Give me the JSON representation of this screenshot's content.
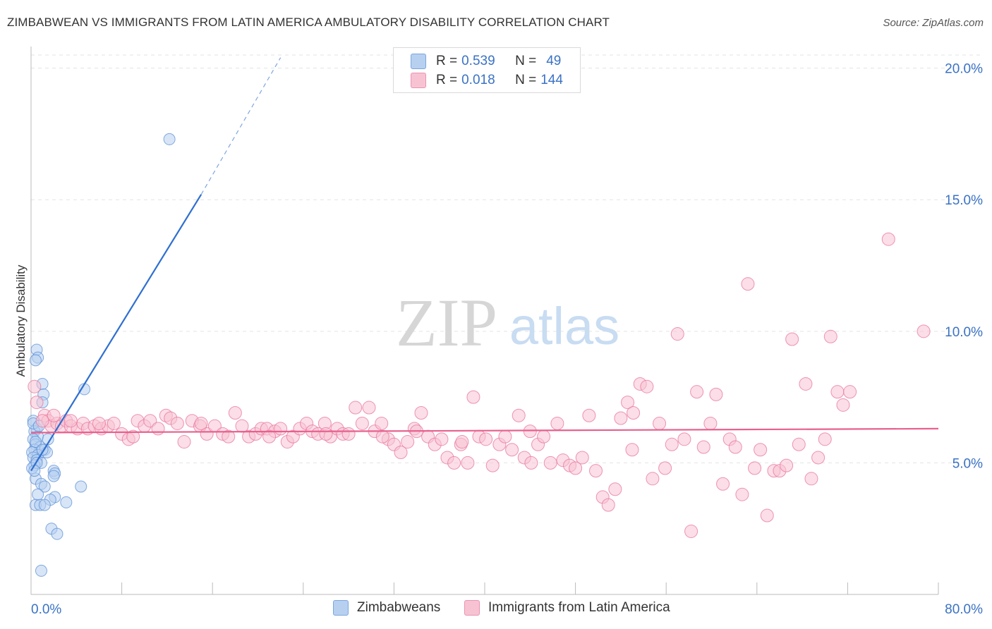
{
  "chart_data": {
    "type": "scatter",
    "title": "ZIMBABWEAN VS IMMIGRANTS FROM LATIN AMERICA AMBULATORY DISABILITY CORRELATION CHART",
    "source": "Source: ZipAtlas.com",
    "ylabel": "Ambulatory Disability",
    "xlabel": "",
    "xlim": [
      0,
      80
    ],
    "ylim": [
      0,
      20.5
    ],
    "x_tick_labels": [
      "0.0%",
      "80.0%"
    ],
    "y_ticks": [
      {
        "value": 5,
        "label": "5.0%"
      },
      {
        "value": 10,
        "label": "10.0%"
      },
      {
        "value": 15,
        "label": "15.0%"
      },
      {
        "value": 20,
        "label": "20.0%"
      }
    ],
    "watermark": {
      "zip": "ZIP",
      "atlas": "atlas"
    },
    "legend": [
      {
        "r_label": "R =",
        "r": "0.539",
        "n_label": "N =",
        "n": "49"
      },
      {
        "r_label": "R =",
        "r": "0.018",
        "n_label": "N =",
        "n": "144"
      }
    ],
    "series": [
      {
        "name": "Zimbabweans",
        "color": "#5b8fd6",
        "fill": "#b7d0f0",
        "trend": {
          "x0": 0,
          "y0": 4.7,
          "x1": 15,
          "y1": 15.2,
          "dash_to_x": 22,
          "dash_to_y": 20.4
        },
        "points": [
          [
            12.2,
            17.3
          ],
          [
            0.5,
            9.3
          ],
          [
            0.6,
            9.0
          ],
          [
            0.4,
            8.9
          ],
          [
            1.0,
            8.0
          ],
          [
            1.1,
            7.6
          ],
          [
            4.7,
            7.8
          ],
          [
            1.0,
            7.3
          ],
          [
            0.2,
            6.6
          ],
          [
            0.5,
            6.3
          ],
          [
            0.3,
            6.2
          ],
          [
            0.6,
            6.0
          ],
          [
            0.2,
            5.9
          ],
          [
            1.5,
            5.9
          ],
          [
            0.4,
            5.7
          ],
          [
            0.8,
            5.6
          ],
          [
            1.2,
            5.5
          ],
          [
            0.3,
            5.5
          ],
          [
            0.1,
            5.4
          ],
          [
            0.6,
            5.3
          ],
          [
            1.4,
            5.4
          ],
          [
            0.2,
            5.2
          ],
          [
            0.5,
            5.1
          ],
          [
            0.9,
            5.0
          ],
          [
            0.3,
            4.9
          ],
          [
            0.1,
            4.8
          ],
          [
            2.0,
            4.7
          ],
          [
            2.1,
            4.6
          ],
          [
            2.0,
            4.5
          ],
          [
            0.4,
            4.4
          ],
          [
            0.9,
            4.2
          ],
          [
            1.2,
            4.1
          ],
          [
            4.4,
            4.1
          ],
          [
            0.6,
            3.8
          ],
          [
            2.1,
            3.7
          ],
          [
            1.7,
            3.6
          ],
          [
            3.1,
            3.5
          ],
          [
            0.4,
            3.4
          ],
          [
            0.8,
            3.4
          ],
          [
            1.2,
            3.4
          ],
          [
            1.8,
            2.5
          ],
          [
            2.3,
            2.3
          ],
          [
            0.9,
            0.9
          ],
          [
            0.2,
            6.5
          ],
          [
            0.7,
            6.4
          ],
          [
            0.4,
            5.8
          ],
          [
            1.0,
            5.5
          ],
          [
            0.5,
            5.0
          ],
          [
            0.3,
            4.7
          ]
        ]
      },
      {
        "name": "Immigrants from Latin America",
        "color": "#e8739a",
        "fill": "#f7c3d3",
        "trend": {
          "x0": 0,
          "y0": 6.15,
          "x1": 80,
          "y1": 6.3
        },
        "points": [
          [
            0.3,
            7.9
          ],
          [
            0.5,
            7.3
          ],
          [
            1.2,
            6.8
          ],
          [
            1.5,
            6.6
          ],
          [
            1.8,
            6.4
          ],
          [
            2.3,
            6.5
          ],
          [
            2.7,
            6.4
          ],
          [
            3.1,
            6.6
          ],
          [
            3.5,
            6.4
          ],
          [
            4.1,
            6.3
          ],
          [
            4.6,
            6.5
          ],
          [
            5.0,
            6.3
          ],
          [
            5.6,
            6.4
          ],
          [
            6.2,
            6.3
          ],
          [
            6.8,
            6.4
          ],
          [
            7.3,
            6.5
          ],
          [
            8.0,
            6.1
          ],
          [
            8.6,
            5.9
          ],
          [
            9.4,
            6.6
          ],
          [
            10.0,
            6.4
          ],
          [
            10.5,
            6.6
          ],
          [
            11.2,
            6.3
          ],
          [
            11.9,
            6.8
          ],
          [
            12.3,
            6.7
          ],
          [
            12.9,
            6.5
          ],
          [
            13.5,
            5.8
          ],
          [
            14.2,
            6.6
          ],
          [
            14.9,
            6.4
          ],
          [
            15.5,
            6.1
          ],
          [
            16.2,
            6.4
          ],
          [
            16.9,
            6.1
          ],
          [
            17.4,
            6.0
          ],
          [
            18.0,
            6.9
          ],
          [
            18.6,
            6.4
          ],
          [
            19.2,
            6.0
          ],
          [
            19.8,
            6.1
          ],
          [
            20.3,
            6.3
          ],
          [
            20.8,
            6.3
          ],
          [
            21.5,
            6.2
          ],
          [
            22.0,
            6.3
          ],
          [
            22.6,
            5.8
          ],
          [
            23.1,
            6.0
          ],
          [
            23.7,
            6.3
          ],
          [
            24.3,
            6.5
          ],
          [
            24.8,
            6.2
          ],
          [
            25.3,
            6.1
          ],
          [
            25.9,
            6.5
          ],
          [
            26.4,
            6.0
          ],
          [
            27.0,
            6.3
          ],
          [
            27.5,
            6.1
          ],
          [
            28.0,
            6.1
          ],
          [
            28.6,
            7.1
          ],
          [
            29.2,
            6.5
          ],
          [
            29.8,
            7.1
          ],
          [
            30.3,
            6.2
          ],
          [
            30.9,
            6.5
          ],
          [
            31.5,
            5.9
          ],
          [
            32.0,
            5.7
          ],
          [
            32.6,
            5.4
          ],
          [
            33.2,
            5.8
          ],
          [
            33.8,
            6.3
          ],
          [
            34.4,
            6.9
          ],
          [
            35.0,
            6.0
          ],
          [
            35.6,
            5.7
          ],
          [
            36.2,
            5.9
          ],
          [
            36.7,
            5.2
          ],
          [
            37.3,
            5.0
          ],
          [
            37.9,
            5.7
          ],
          [
            38.5,
            5.0
          ],
          [
            39.0,
            7.5
          ],
          [
            39.5,
            6.0
          ],
          [
            40.1,
            5.9
          ],
          [
            40.7,
            4.9
          ],
          [
            41.3,
            5.7
          ],
          [
            41.8,
            6.0
          ],
          [
            42.4,
            5.5
          ],
          [
            43.0,
            6.8
          ],
          [
            43.5,
            5.2
          ],
          [
            44.1,
            5.0
          ],
          [
            44.7,
            5.7
          ],
          [
            45.2,
            6.0
          ],
          [
            45.8,
            5.0
          ],
          [
            46.4,
            6.5
          ],
          [
            46.9,
            5.1
          ],
          [
            47.5,
            4.9
          ],
          [
            48.0,
            4.8
          ],
          [
            48.6,
            5.2
          ],
          [
            49.2,
            6.8
          ],
          [
            49.8,
            4.7
          ],
          [
            50.4,
            3.7
          ],
          [
            50.9,
            3.4
          ],
          [
            51.5,
            4.0
          ],
          [
            52.0,
            6.7
          ],
          [
            52.6,
            7.3
          ],
          [
            53.1,
            6.9
          ],
          [
            53.7,
            8.0
          ],
          [
            54.3,
            7.9
          ],
          [
            54.8,
            4.4
          ],
          [
            55.4,
            6.5
          ],
          [
            55.9,
            4.8
          ],
          [
            56.5,
            5.7
          ],
          [
            57.0,
            9.9
          ],
          [
            57.6,
            5.9
          ],
          [
            58.2,
            2.4
          ],
          [
            58.7,
            7.7
          ],
          [
            59.3,
            5.6
          ],
          [
            59.9,
            6.5
          ],
          [
            60.4,
            7.6
          ],
          [
            61.0,
            4.2
          ],
          [
            61.6,
            5.9
          ],
          [
            62.1,
            5.6
          ],
          [
            62.7,
            3.8
          ],
          [
            63.2,
            11.8
          ],
          [
            63.8,
            4.8
          ],
          [
            64.3,
            5.5
          ],
          [
            64.9,
            3.0
          ],
          [
            65.5,
            4.7
          ],
          [
            66.0,
            4.7
          ],
          [
            66.6,
            4.9
          ],
          [
            67.1,
            9.7
          ],
          [
            67.7,
            5.7
          ],
          [
            68.3,
            8.0
          ],
          [
            68.8,
            4.4
          ],
          [
            69.4,
            5.2
          ],
          [
            70.0,
            5.9
          ],
          [
            70.5,
            9.8
          ],
          [
            71.1,
            7.7
          ],
          [
            71.6,
            7.2
          ],
          [
            72.2,
            7.7
          ],
          [
            75.6,
            13.5
          ],
          [
            78.7,
            10.0
          ],
          [
            2.0,
            6.8
          ],
          [
            1.0,
            6.6
          ],
          [
            3.5,
            6.6
          ],
          [
            6.0,
            6.5
          ],
          [
            9.0,
            6.0
          ],
          [
            15.0,
            6.5
          ],
          [
            21.0,
            6.0
          ],
          [
            26.0,
            6.1
          ],
          [
            31.0,
            6.0
          ],
          [
            34.0,
            6.2
          ],
          [
            38.0,
            5.8
          ],
          [
            44.0,
            6.2
          ],
          [
            53.0,
            5.5
          ]
        ]
      }
    ]
  }
}
